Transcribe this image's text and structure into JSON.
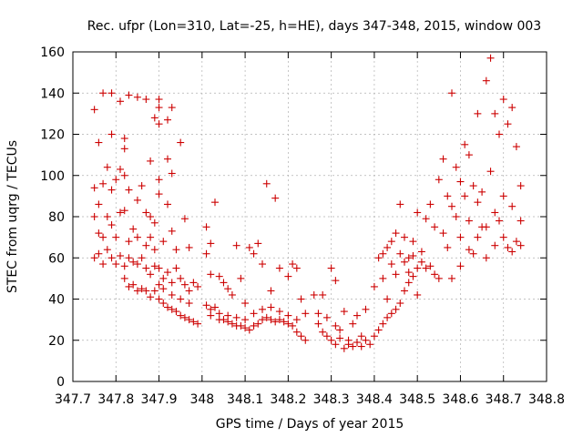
{
  "chart_data": {
    "type": "scatter",
    "title": "Rec. ufpr (Lon=310, Lat=-25, h=HE), days 347-348, 2015, window 003",
    "xlabel": "GPS time / Days of year 2015",
    "ylabel": "STEC from uqrg / TECUs",
    "xlim": [
      347.7,
      348.8
    ],
    "ylim": [
      0,
      160
    ],
    "xticks": [
      347.7,
      347.8,
      347.9,
      348.0,
      348.1,
      348.2,
      348.3,
      348.4,
      348.5,
      348.6,
      348.7,
      348.8
    ],
    "xtick_labels": [
      "347.7",
      "347.8",
      "347.9",
      "348",
      "348.1",
      "348.2",
      "348.3",
      "348.4",
      "348.5",
      "348.6",
      "348.7",
      "348.8"
    ],
    "yticks": [
      0,
      20,
      40,
      60,
      80,
      100,
      120,
      140,
      160
    ],
    "ytick_labels": [
      "0",
      "20",
      "40",
      "60",
      "80",
      "100",
      "120",
      "140",
      "160"
    ],
    "grid": true,
    "marker": "+",
    "color": "#cc0000",
    "series": [
      {
        "name": "",
        "points": [
          [
            347.75,
            132
          ],
          [
            347.77,
            140
          ],
          [
            347.79,
            140
          ],
          [
            347.81,
            136
          ],
          [
            347.83,
            139
          ],
          [
            347.85,
            138
          ],
          [
            347.87,
            137
          ],
          [
            347.89,
            128
          ],
          [
            347.9,
            137
          ],
          [
            347.9,
            133
          ],
          [
            347.92,
            127
          ],
          [
            347.93,
            133
          ],
          [
            347.95,
            116
          ],
          [
            347.76,
            116
          ],
          [
            347.79,
            120
          ],
          [
            347.82,
            118
          ],
          [
            347.82,
            113
          ],
          [
            347.9,
            125
          ],
          [
            347.93,
            101
          ],
          [
            347.88,
            107
          ],
          [
            347.75,
            94
          ],
          [
            347.76,
            86
          ],
          [
            347.77,
            96
          ],
          [
            347.78,
            104
          ],
          [
            347.79,
            93
          ],
          [
            347.8,
            98
          ],
          [
            347.81,
            103
          ],
          [
            347.82,
            100
          ],
          [
            347.83,
            93
          ],
          [
            347.85,
            88
          ],
          [
            347.86,
            95
          ],
          [
            347.87,
            82
          ],
          [
            347.88,
            80
          ],
          [
            347.89,
            77
          ],
          [
            347.9,
            98
          ],
          [
            347.9,
            91
          ],
          [
            347.92,
            86
          ],
          [
            347.92,
            108
          ],
          [
            347.75,
            80
          ],
          [
            347.76,
            72
          ],
          [
            347.77,
            70
          ],
          [
            347.78,
            80
          ],
          [
            347.79,
            76
          ],
          [
            347.8,
            70
          ],
          [
            347.81,
            82
          ],
          [
            347.82,
            83
          ],
          [
            347.83,
            68
          ],
          [
            347.84,
            74
          ],
          [
            347.85,
            70
          ],
          [
            347.87,
            66
          ],
          [
            347.88,
            70
          ],
          [
            347.89,
            64
          ],
          [
            347.91,
            68
          ],
          [
            347.93,
            73
          ],
          [
            347.94,
            64
          ],
          [
            347.96,
            79
          ],
          [
            347.97,
            65
          ],
          [
            347.75,
            60
          ],
          [
            347.76,
            62
          ],
          [
            347.77,
            57
          ],
          [
            347.78,
            64
          ],
          [
            347.79,
            60
          ],
          [
            347.8,
            57
          ],
          [
            347.81,
            61
          ],
          [
            347.82,
            56
          ],
          [
            347.83,
            60
          ],
          [
            347.84,
            58
          ],
          [
            347.85,
            57
          ],
          [
            347.86,
            60
          ],
          [
            347.87,
            55
          ],
          [
            347.88,
            52
          ],
          [
            347.89,
            56
          ],
          [
            347.9,
            55
          ],
          [
            347.91,
            50
          ],
          [
            347.92,
            53
          ],
          [
            347.93,
            48
          ],
          [
            347.94,
            55
          ],
          [
            347.95,
            50
          ],
          [
            347.96,
            47
          ],
          [
            347.97,
            44
          ],
          [
            347.98,
            48
          ],
          [
            347.99,
            46
          ],
          [
            347.82,
            50
          ],
          [
            347.83,
            46
          ],
          [
            347.84,
            47
          ],
          [
            347.85,
            44
          ],
          [
            347.86,
            45
          ],
          [
            347.87,
            44
          ],
          [
            347.88,
            41
          ],
          [
            347.89,
            44
          ],
          [
            347.9,
            40
          ],
          [
            347.91,
            38
          ],
          [
            347.92,
            36
          ],
          [
            347.93,
            35
          ],
          [
            347.94,
            34
          ],
          [
            347.95,
            32
          ],
          [
            347.96,
            31
          ],
          [
            347.97,
            30
          ],
          [
            347.98,
            29
          ],
          [
            347.99,
            28
          ],
          [
            347.9,
            47
          ],
          [
            347.91,
            45
          ],
          [
            347.93,
            42
          ],
          [
            347.95,
            40
          ],
          [
            347.97,
            38
          ],
          [
            348.01,
            75
          ],
          [
            348.02,
            67
          ],
          [
            348.03,
            87
          ],
          [
            348.01,
            62
          ],
          [
            348.02,
            52
          ],
          [
            348.04,
            51
          ],
          [
            348.05,
            48
          ],
          [
            348.06,
            45
          ],
          [
            348.07,
            42
          ],
          [
            348.08,
            66
          ],
          [
            348.09,
            50
          ],
          [
            348.1,
            38
          ],
          [
            348.11,
            65
          ],
          [
            348.12,
            62
          ],
          [
            348.13,
            67
          ],
          [
            348.14,
            57
          ],
          [
            348.15,
            96
          ],
          [
            348.16,
            44
          ],
          [
            348.17,
            89
          ],
          [
            348.18,
            55
          ],
          [
            348.2,
            51
          ],
          [
            348.21,
            57
          ],
          [
            348.22,
            55
          ],
          [
            348.23,
            40
          ],
          [
            348.24,
            33
          ],
          [
            348.01,
            37
          ],
          [
            348.02,
            35
          ],
          [
            348.03,
            36
          ],
          [
            348.04,
            33
          ],
          [
            348.05,
            30
          ],
          [
            348.06,
            29
          ],
          [
            348.07,
            28
          ],
          [
            348.08,
            27
          ],
          [
            348.09,
            27
          ],
          [
            348.1,
            26
          ],
          [
            348.11,
            25
          ],
          [
            348.12,
            27
          ],
          [
            348.13,
            28
          ],
          [
            348.14,
            30
          ],
          [
            348.15,
            31
          ],
          [
            348.16,
            30
          ],
          [
            348.17,
            29
          ],
          [
            348.18,
            30
          ],
          [
            348.19,
            29
          ],
          [
            348.2,
            28
          ],
          [
            348.21,
            27
          ],
          [
            348.22,
            24
          ],
          [
            348.23,
            22
          ],
          [
            348.24,
            20
          ],
          [
            348.02,
            32
          ],
          [
            348.04,
            30
          ],
          [
            348.06,
            32
          ],
          [
            348.08,
            31
          ],
          [
            348.1,
            30
          ],
          [
            348.12,
            33
          ],
          [
            348.14,
            35
          ],
          [
            348.16,
            36
          ],
          [
            348.18,
            34
          ],
          [
            348.2,
            32
          ],
          [
            348.22,
            30
          ],
          [
            348.26,
            42
          ],
          [
            348.27,
            33
          ],
          [
            348.27,
            28
          ],
          [
            348.28,
            42
          ],
          [
            348.28,
            24
          ],
          [
            348.29,
            31
          ],
          [
            348.29,
            22
          ],
          [
            348.3,
            55
          ],
          [
            348.3,
            20
          ],
          [
            348.31,
            49
          ],
          [
            348.31,
            27
          ],
          [
            348.31,
            18
          ],
          [
            348.32,
            25
          ],
          [
            348.32,
            21
          ],
          [
            348.33,
            34
          ],
          [
            348.33,
            16
          ],
          [
            348.34,
            20
          ],
          [
            348.34,
            18
          ],
          [
            348.35,
            17
          ],
          [
            348.35,
            28
          ],
          [
            348.36,
            32
          ],
          [
            348.36,
            19
          ],
          [
            348.37,
            22
          ],
          [
            348.37,
            17
          ],
          [
            348.38,
            20
          ],
          [
            348.38,
            35
          ],
          [
            348.39,
            18
          ],
          [
            348.4,
            22
          ],
          [
            348.4,
            46
          ],
          [
            348.41,
            25
          ],
          [
            348.42,
            28
          ],
          [
            348.42,
            50
          ],
          [
            348.43,
            31
          ],
          [
            348.43,
            40
          ],
          [
            348.44,
            33
          ],
          [
            348.44,
            57
          ],
          [
            348.45,
            35
          ],
          [
            348.45,
            52
          ],
          [
            348.46,
            38
          ],
          [
            348.46,
            62
          ],
          [
            348.47,
            44
          ],
          [
            348.47,
            70
          ],
          [
            348.48,
            48
          ],
          [
            348.48,
            60
          ],
          [
            348.49,
            51
          ],
          [
            348.49,
            68
          ],
          [
            348.5,
            55
          ],
          [
            348.5,
            42
          ],
          [
            348.41,
            60
          ],
          [
            348.42,
            62
          ],
          [
            348.43,
            65
          ],
          [
            348.44,
            68
          ],
          [
            348.45,
            72
          ],
          [
            348.46,
            86
          ],
          [
            348.47,
            58
          ],
          [
            348.48,
            53
          ],
          [
            348.49,
            61
          ],
          [
            348.5,
            82
          ],
          [
            348.51,
            63
          ],
          [
            348.51,
            58
          ],
          [
            348.52,
            79
          ],
          [
            348.52,
            55
          ],
          [
            348.53,
            86
          ],
          [
            348.53,
            56
          ],
          [
            348.54,
            75
          ],
          [
            348.54,
            52
          ],
          [
            348.55,
            98
          ],
          [
            348.55,
            50
          ],
          [
            348.56,
            72
          ],
          [
            348.56,
            108
          ],
          [
            348.57,
            90
          ],
          [
            348.57,
            65
          ],
          [
            348.58,
            140
          ],
          [
            348.58,
            85
          ],
          [
            348.59,
            104
          ],
          [
            348.59,
            80
          ],
          [
            348.6,
            97
          ],
          [
            348.6,
            70
          ],
          [
            348.61,
            115
          ],
          [
            348.61,
            90
          ],
          [
            348.62,
            110
          ],
          [
            348.62,
            78
          ],
          [
            348.63,
            95
          ],
          [
            348.63,
            62
          ],
          [
            348.64,
            130
          ],
          [
            348.64,
            87
          ],
          [
            348.65,
            92
          ],
          [
            348.65,
            75
          ],
          [
            348.66,
            146
          ],
          [
            348.66,
            60
          ],
          [
            348.67,
            157
          ],
          [
            348.67,
            102
          ],
          [
            348.68,
            130
          ],
          [
            348.68,
            82
          ],
          [
            348.69,
            120
          ],
          [
            348.69,
            78
          ],
          [
            348.7,
            137
          ],
          [
            348.7,
            90
          ],
          [
            348.71,
            125
          ],
          [
            348.71,
            65
          ],
          [
            348.72,
            133
          ],
          [
            348.72,
            85
          ],
          [
            348.73,
            114
          ],
          [
            348.73,
            68
          ],
          [
            348.74,
            95
          ],
          [
            348.74,
            78
          ],
          [
            348.58,
            50
          ],
          [
            348.6,
            56
          ],
          [
            348.62,
            64
          ],
          [
            348.64,
            70
          ],
          [
            348.66,
            75
          ],
          [
            348.68,
            66
          ],
          [
            348.7,
            70
          ],
          [
            348.72,
            63
          ],
          [
            348.74,
            66
          ]
        ]
      }
    ]
  }
}
